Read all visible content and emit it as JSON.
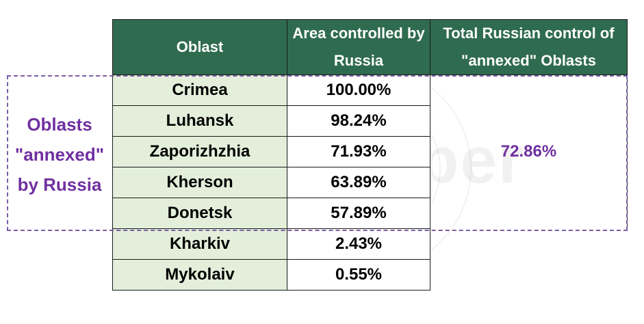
{
  "chart_data": {
    "type": "table",
    "columns": [
      "Oblast",
      "Area controlled by Russia",
      "Total Russian control of \"annexed\" Oblasts"
    ],
    "rows": [
      {
        "oblast": "Crimea",
        "area": "100.00%"
      },
      {
        "oblast": "Luhansk",
        "area": "98.24%"
      },
      {
        "oblast": "Zaporizhzhia",
        "area": "71.93%"
      },
      {
        "oblast": "Kherson",
        "area": "63.89%"
      },
      {
        "oblast": "Donetsk",
        "area": "57.89%"
      },
      {
        "oblast": "Kharkiv",
        "area": "2.43%"
      },
      {
        "oblast": "Mykolaiv",
        "area": "0.55%"
      }
    ],
    "total": "72.86%",
    "annexed_label": [
      "Oblasts",
      "\"annexed\"",
      "by Russia"
    ],
    "watermark": "WarMapper"
  },
  "colors": {
    "header_bg": "#2f6b4f",
    "oblast_bg": "#e3efda",
    "accent": "#7030a0",
    "dashed_border": "#7a5ea8"
  }
}
